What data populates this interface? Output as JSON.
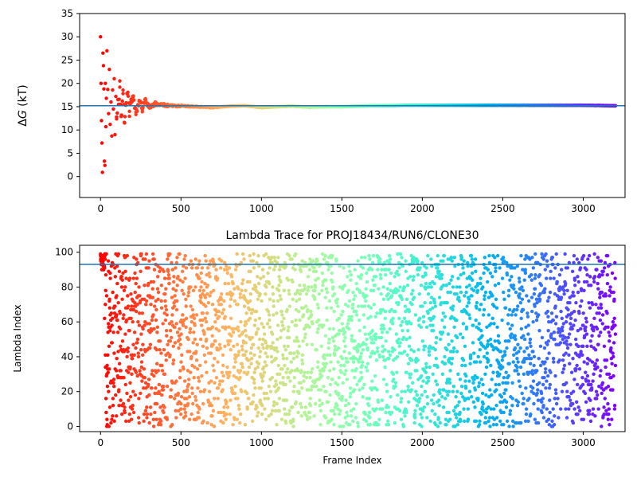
{
  "chart_data": [
    {
      "type": "scatter",
      "title": "",
      "xlabel": "",
      "ylabel_prefix": "Δ",
      "ylabel_var": "G",
      "ylabel_suffix": " (kT)",
      "xlim": [
        -130,
        3260
      ],
      "ylim": [
        -4.5,
        35
      ],
      "xticks": [
        0,
        500,
        1000,
        1500,
        2000,
        2500,
        3000
      ],
      "yticks": [
        0,
        5,
        10,
        15,
        20,
        25,
        30,
        35
      ],
      "hline": {
        "y": 15.2,
        "color": "#1f77b4"
      },
      "colormap": "rainbow (reversed: red at frame 0, violet at frame 3200)",
      "series": [
        {
          "description": "running free energy estimate per frame",
          "points": [
            [
              0,
              30.0
            ],
            [
              3,
              20.0
            ],
            [
              6,
              12.0
            ],
            [
              9,
              7.2
            ],
            [
              12,
              0.9
            ],
            [
              15,
              26.5
            ],
            [
              18,
              23.8
            ],
            [
              21,
              18.8
            ],
            [
              24,
              3.3
            ],
            [
              27,
              2.4
            ],
            [
              30,
              20.0
            ],
            [
              33,
              10.7
            ],
            [
              36,
              16.8
            ],
            [
              40,
              27.0
            ],
            [
              45,
              18.7
            ],
            [
              50,
              13.5
            ],
            [
              55,
              23.0
            ],
            [
              60,
              11.2
            ],
            [
              65,
              16.0
            ],
            [
              70,
              8.7
            ],
            [
              75,
              18.6
            ],
            [
              80,
              14.5
            ],
            [
              85,
              21.0
            ],
            [
              90,
              9.0
            ],
            [
              95,
              17.2
            ],
            [
              100,
              12.8
            ],
            [
              110,
              16.5
            ],
            [
              120,
              19.2
            ],
            [
              130,
              13.2
            ],
            [
              140,
              17.8
            ],
            [
              150,
              11.5
            ],
            [
              160,
              15.8
            ],
            [
              170,
              18.1
            ],
            [
              180,
              14.0
            ],
            [
              190,
              16.6
            ],
            [
              200,
              17.0
            ],
            [
              220,
              13.8
            ],
            [
              240,
              16.2
            ],
            [
              260,
              14.4
            ],
            [
              280,
              16.4
            ],
            [
              300,
              15.0
            ],
            [
              350,
              15.7
            ],
            [
              400,
              15.3
            ],
            [
              450,
              15.1
            ],
            [
              500,
              15.2
            ],
            [
              600,
              15.0
            ],
            [
              700,
              14.8
            ],
            [
              800,
              15.1
            ],
            [
              900,
              15.2
            ],
            [
              1000,
              14.8
            ],
            [
              1100,
              15.0
            ],
            [
              1200,
              15.1
            ],
            [
              1300,
              14.9
            ],
            [
              1400,
              15.0
            ],
            [
              1500,
              15.0
            ],
            [
              1600,
              15.1
            ],
            [
              1700,
              15.2
            ],
            [
              1800,
              15.2
            ],
            [
              1900,
              15.3
            ],
            [
              2000,
              15.3
            ],
            [
              2200,
              15.3
            ],
            [
              2400,
              15.3
            ],
            [
              2600,
              15.3
            ],
            [
              2800,
              15.3
            ],
            [
              3000,
              15.3
            ],
            [
              3200,
              15.2
            ]
          ]
        }
      ]
    },
    {
      "type": "scatter",
      "title": "Lambda Trace for PROJ18434/RUN6/CLONE30",
      "xlabel": "Frame Index",
      "ylabel": "Lambda Index",
      "xlim": [
        -130,
        3260
      ],
      "ylim": [
        -3,
        104
      ],
      "xticks": [
        0,
        500,
        1000,
        1500,
        2000,
        2500,
        3000
      ],
      "yticks": [
        0,
        20,
        40,
        60,
        80,
        100
      ],
      "hline": {
        "y": 93,
        "color": "#1f77b4"
      },
      "colormap": "rainbow (reversed: red at frame 0, violet at frame 3200)",
      "frames": 3200,
      "lambda_range": [
        0,
        99
      ],
      "series": [
        {
          "description": "lambda index visited at each frame; roughly uniform over 0–99, densest near 90–99 in the first ~30 frames",
          "sample_points": [
            [
              0,
              99
            ],
            [
              5,
              97
            ],
            [
              10,
              95
            ],
            [
              15,
              98
            ],
            [
              20,
              96
            ],
            [
              25,
              62
            ],
            [
              30,
              41
            ],
            [
              40,
              30
            ],
            [
              50,
              20
            ],
            [
              60,
              88
            ],
            [
              100,
              75
            ],
            [
              200,
              60
            ],
            [
              300,
              45
            ],
            [
              400,
              85
            ],
            [
              500,
              10
            ],
            [
              700,
              95
            ],
            [
              900,
              55
            ],
            [
              1100,
              30
            ],
            [
              1300,
              90
            ],
            [
              1500,
              15
            ],
            [
              1700,
              70
            ],
            [
              1900,
              60
            ],
            [
              2100,
              5
            ],
            [
              2300,
              98
            ],
            [
              2500,
              40
            ],
            [
              2700,
              85
            ],
            [
              2900,
              20
            ],
            [
              3100,
              65
            ],
            [
              3200,
              35
            ]
          ]
        }
      ]
    }
  ]
}
